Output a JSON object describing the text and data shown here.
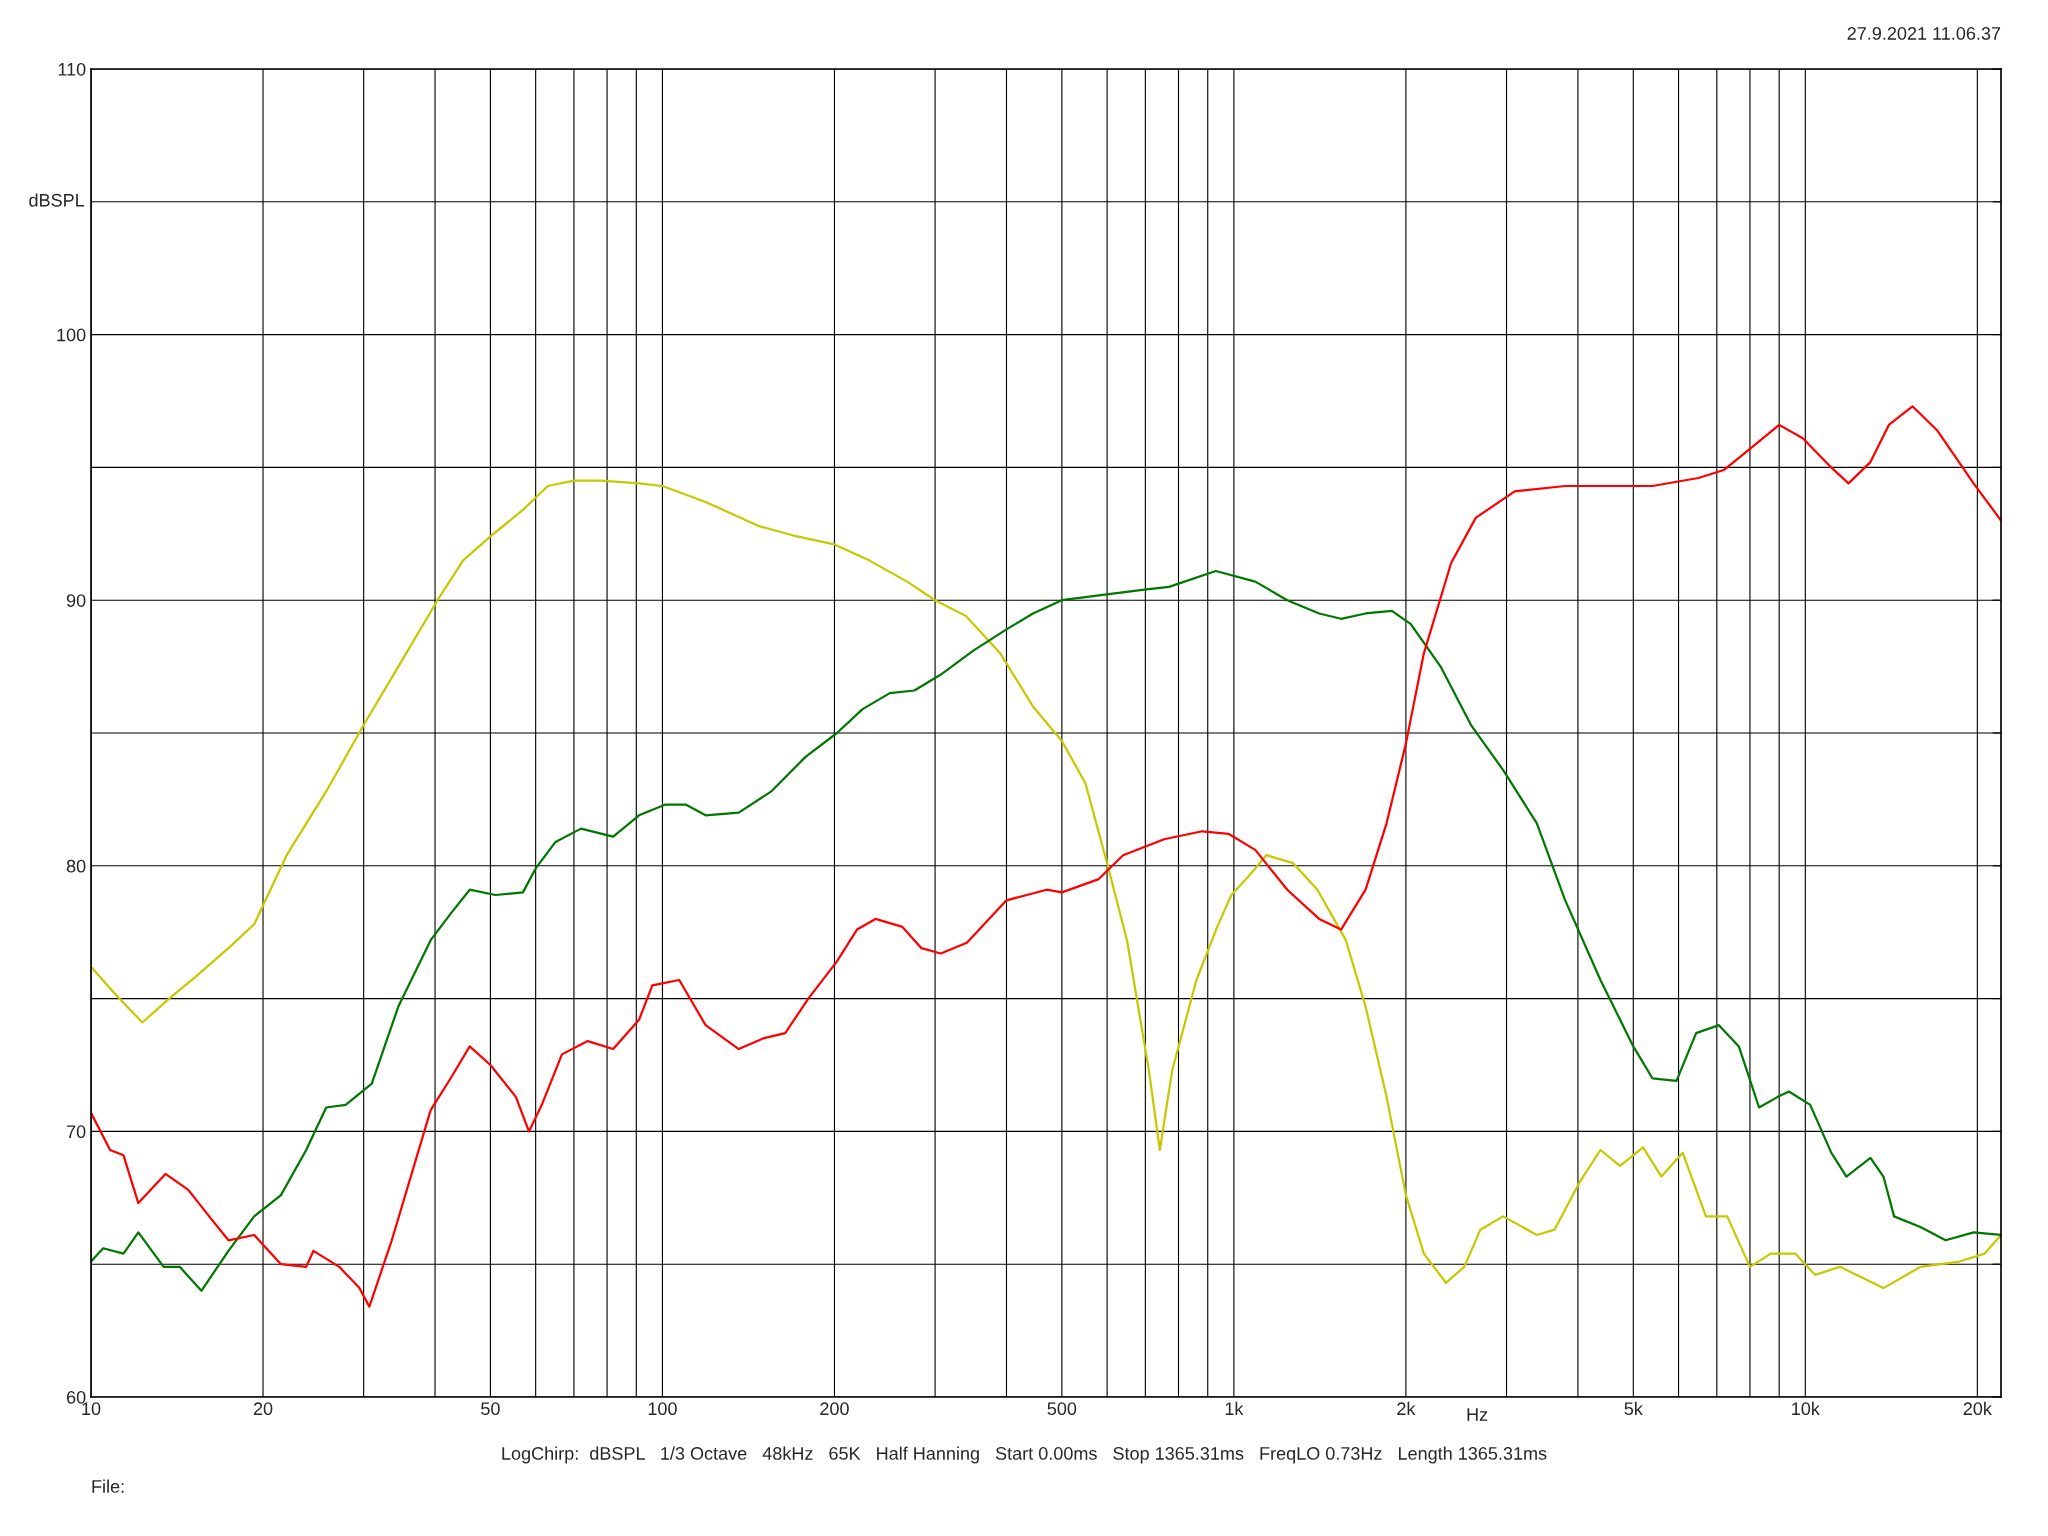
{
  "chart_data": {
    "type": "line",
    "xlabel": "Hz",
    "ylabel": "dBSPL",
    "log": "x",
    "grid": true,
    "xlim": [
      10,
      22000
    ],
    "ylim": [
      60,
      110
    ],
    "xticks": [
      10,
      20,
      {
        "value": 30,
        "label": null
      },
      {
        "value": 40,
        "label": null
      },
      50,
      {
        "value": 60,
        "label": null
      },
      {
        "value": 70,
        "label": null
      },
      {
        "value": 80,
        "label": null
      },
      {
        "value": 90,
        "label": null
      },
      100,
      200,
      {
        "value": 300,
        "label": null
      },
      {
        "value": 400,
        "label": null
      },
      500,
      {
        "value": 600,
        "label": null
      },
      {
        "value": 700,
        "label": null
      },
      {
        "value": 800,
        "label": null
      },
      {
        "value": 900,
        "label": null
      },
      {
        "value": 1000,
        "label": "1k"
      },
      {
        "value": 2000,
        "label": "2k"
      },
      {
        "value": 3000,
        "label": null
      },
      {
        "value": 4000,
        "label": null
      },
      {
        "value": 5000,
        "label": "5k"
      },
      {
        "value": 6000,
        "label": null
      },
      {
        "value": 7000,
        "label": null
      },
      {
        "value": 8000,
        "label": null
      },
      {
        "value": 9000,
        "label": null
      },
      {
        "value": 10000,
        "label": "10k"
      },
      {
        "value": 20000,
        "label": "20k"
      }
    ],
    "yticks": [
      60,
      {
        "value": 65,
        "label": null
      },
      70,
      {
        "value": 75,
        "label": null
      },
      80,
      {
        "value": 85,
        "label": null
      },
      90,
      {
        "value": 95,
        "label": null
      },
      100,
      {
        "value": 105,
        "label": null
      },
      110
    ],
    "annotations": [
      "27.9.2021 11.06.37",
      "LogChirp:  dBSPL   1/3 Octave   48kHz   65K   Half Hanning   Start 0.00ms   Stop 1365.31ms   FreqLO 0.73Hz   Length 1365.31ms",
      "File:"
    ],
    "series": [
      {
        "color": "#c8c800",
        "x": [
          10,
          11.1,
          12.3,
          13.7,
          15.2,
          17.4,
          19.3,
          22,
          25.8,
          30,
          34.5,
          40.4,
          44.8,
          50,
          57,
          63,
          70,
          78,
          91,
          100,
          119,
          147,
          172,
          200,
          230,
          268,
          300,
          340,
          390,
          445,
          500,
          550,
          600,
          650,
          710,
          742,
          780,
          860,
          935,
          990,
          1060,
          1140,
          1270,
          1400,
          1570,
          1700,
          1850,
          2000,
          2150,
          2350,
          2530,
          2700,
          2960,
          3390,
          3640,
          4030,
          4380,
          4740,
          5200,
          5600,
          6100,
          6700,
          7300,
          8000,
          8700,
          9600,
          10400,
          11500,
          13700,
          15900,
          18600,
          20600,
          22000
        ],
        "values": [
          76.2,
          75.1,
          74.1,
          75.0,
          75.8,
          76.9,
          77.8,
          80.4,
          82.8,
          85.3,
          87.5,
          90.0,
          91.5,
          92.4,
          93.4,
          94.3,
          94.5,
          94.5,
          94.4,
          94.3,
          93.7,
          92.8,
          92.4,
          92.1,
          91.5,
          90.7,
          90.0,
          89.4,
          88.0,
          86.0,
          84.7,
          83.1,
          80.1,
          77.2,
          72.3,
          69.3,
          72.3,
          75.7,
          77.7,
          78.9,
          79.6,
          80.4,
          80.1,
          79.1,
          77.2,
          74.7,
          71.3,
          67.6,
          65.4,
          64.3,
          64.9,
          66.3,
          66.8,
          66.1,
          66.3,
          68.1,
          69.3,
          68.7,
          69.4,
          68.3,
          69.2,
          66.8,
          66.8,
          64.9,
          65.4,
          65.4,
          64.6,
          64.9,
          64.1,
          64.9,
          65.1,
          65.4,
          66.1
        ]
      },
      {
        "color": "#007800",
        "x": [
          10,
          10.5,
          11.4,
          12.1,
          13.4,
          14.3,
          15.6,
          17.4,
          19.3,
          21.5,
          23.8,
          25.8,
          27.9,
          31,
          34.5,
          39.3,
          42.6,
          46,
          51,
          57,
          60,
          65,
          72,
          82,
          91,
          101,
          110,
          119,
          136,
          155,
          178,
          202,
          224,
          250,
          276,
          307,
          350,
          400,
          445,
          500,
          590,
          697,
          770,
          930,
          1090,
          1240,
          1410,
          1540,
          1700,
          1890,
          2040,
          2300,
          2600,
          2960,
          3390,
          3800,
          4380,
          5000,
          5400,
          5950,
          6440,
          7060,
          7650,
          8300,
          8950,
          9360,
          10200,
          11100,
          11800,
          13000,
          13700,
          14300,
          15900,
          17600,
          19700,
          22000
        ],
        "values": [
          65.1,
          65.6,
          65.4,
          66.2,
          64.9,
          64.9,
          64.0,
          65.5,
          66.8,
          67.6,
          69.3,
          70.9,
          71.0,
          71.8,
          74.7,
          77.2,
          78.2,
          79.1,
          78.9,
          79.0,
          79.9,
          80.9,
          81.4,
          81.1,
          81.9,
          82.3,
          82.3,
          81.9,
          82.0,
          82.8,
          84.1,
          85.0,
          85.9,
          86.5,
          86.6,
          87.2,
          88.1,
          88.9,
          89.5,
          90.0,
          90.2,
          90.4,
          90.5,
          91.1,
          90.7,
          90.0,
          89.5,
          89.3,
          89.5,
          89.6,
          89.1,
          87.5,
          85.3,
          83.6,
          81.6,
          78.7,
          75.7,
          73.2,
          72.0,
          71.9,
          73.7,
          74.0,
          73.2,
          70.9,
          71.3,
          71.5,
          71.0,
          69.2,
          68.3,
          69.0,
          68.3,
          66.8,
          66.4,
          65.9,
          66.2,
          66.1
        ]
      },
      {
        "color": "#ff0000",
        "x": [
          10,
          10.8,
          11.4,
          12.1,
          13.5,
          14.8,
          16.1,
          17.4,
          19.3,
          21.5,
          23.8,
          24.5,
          27.2,
          29.5,
          30.7,
          33.6,
          39.3,
          42.6,
          46,
          50,
          55.4,
          58.4,
          61.5,
          66.7,
          74,
          82,
          91,
          96,
          107,
          119,
          136,
          150,
          164,
          180,
          202,
          219,
          236,
          263,
          284,
          307,
          341,
          400,
          470,
          500,
          580,
          640,
          755,
          880,
          980,
          1090,
          1240,
          1410,
          1540,
          1700,
          1850,
          2000,
          2150,
          2400,
          2650,
          3100,
          3800,
          5400,
          6500,
          7200,
          8000,
          9000,
          9900,
          11100,
          11900,
          13000,
          14000,
          15400,
          17000,
          19700,
          22000
        ],
        "values": [
          70.7,
          69.3,
          69.1,
          67.3,
          68.4,
          67.8,
          66.8,
          65.9,
          66.1,
          65.0,
          64.9,
          65.5,
          64.9,
          64.1,
          63.4,
          65.9,
          70.8,
          72.0,
          73.2,
          72.5,
          71.3,
          70.0,
          71.0,
          72.9,
          73.4,
          73.1,
          74.2,
          75.5,
          75.7,
          74.0,
          73.1,
          73.5,
          73.7,
          75.0,
          76.4,
          77.6,
          78.0,
          77.7,
          76.9,
          76.7,
          77.1,
          78.7,
          79.1,
          79.0,
          79.5,
          80.4,
          81.0,
          81.3,
          81.2,
          80.6,
          79.1,
          78.0,
          77.6,
          79.1,
          81.6,
          84.6,
          88.0,
          91.4,
          93.1,
          94.1,
          94.3,
          94.3,
          94.6,
          94.9,
          95.7,
          96.6,
          96.1,
          95.0,
          94.4,
          95.2,
          96.6,
          97.3,
          96.4,
          94.4,
          93.0
        ]
      }
    ]
  }
}
